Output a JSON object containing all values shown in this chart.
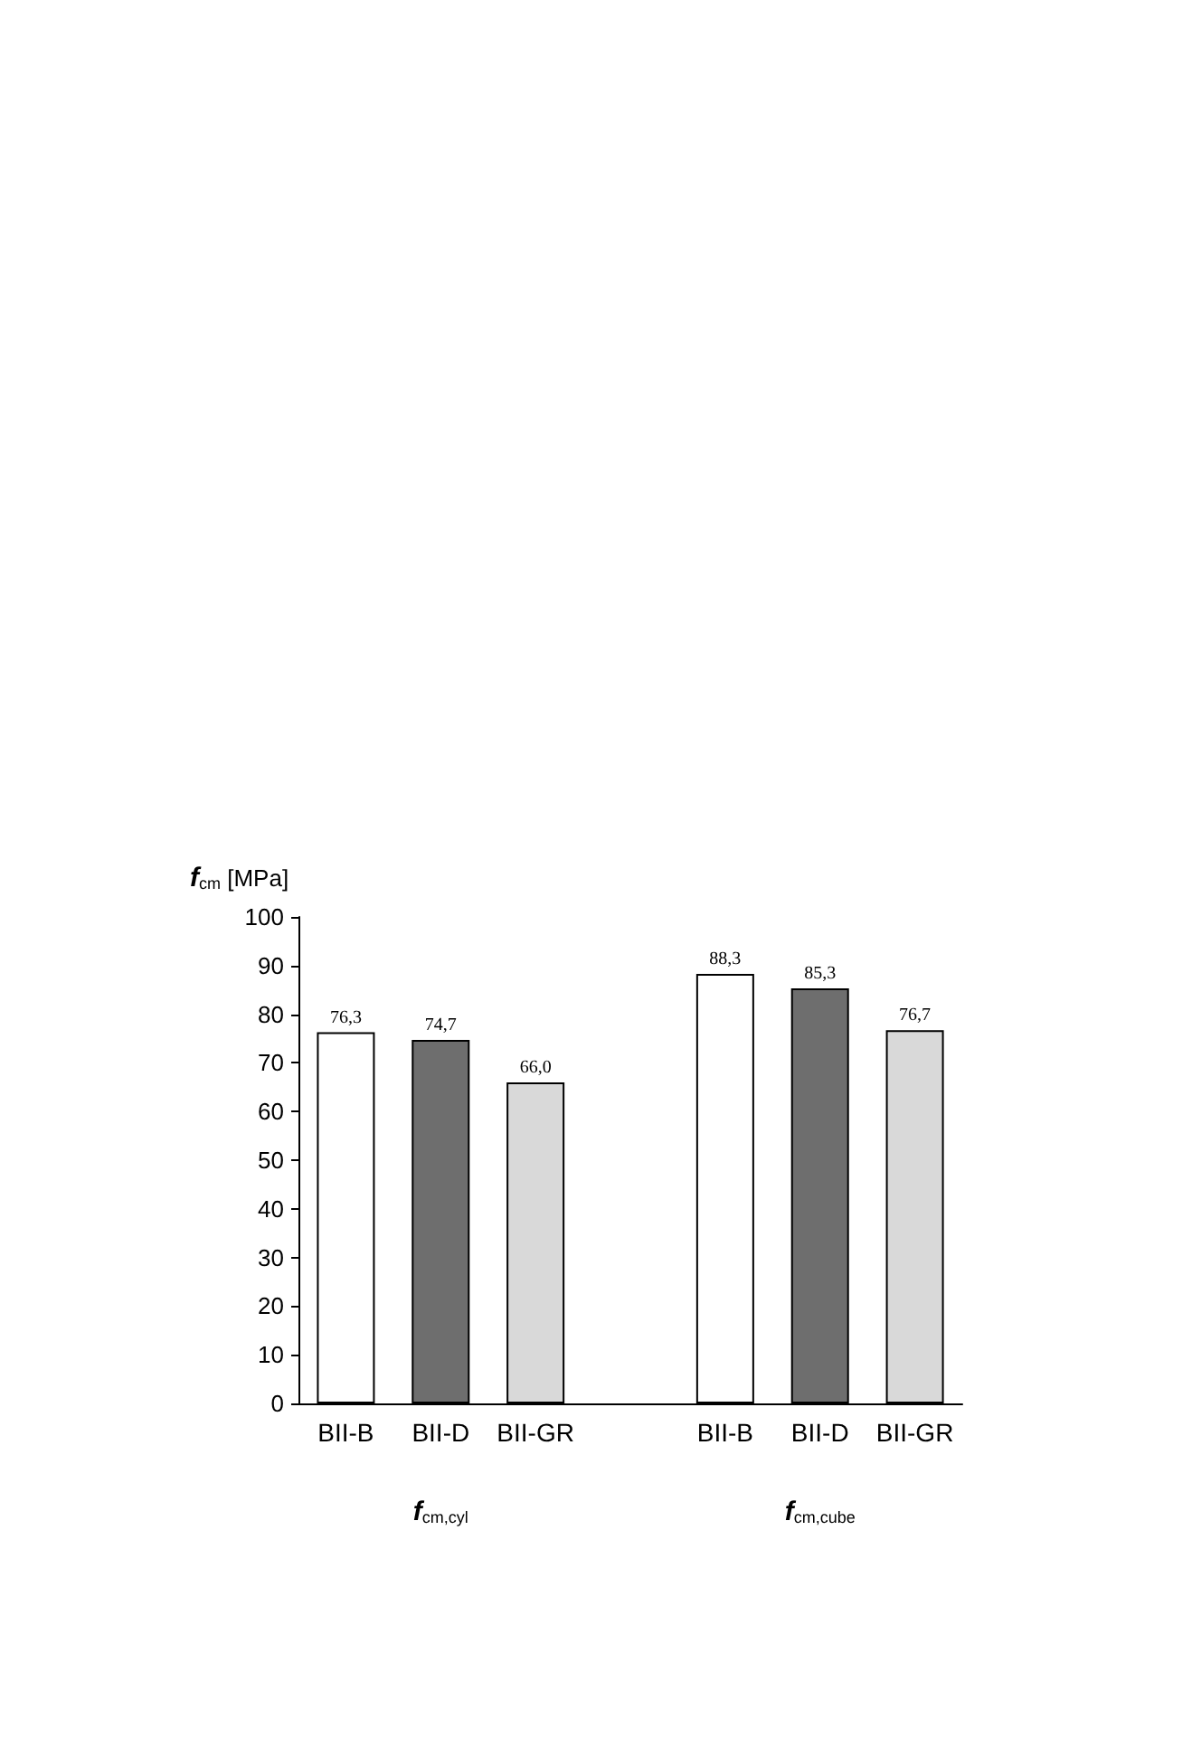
{
  "chart_data": {
    "type": "bar",
    "ylabel": "f$_{cm}$ [MPa]",
    "categories": [
      "BII-B",
      "BII-D",
      "BII-GR",
      null,
      "BII-B",
      "BII-D",
      "BII-GR"
    ],
    "values": [
      76.3,
      74.7,
      66.0,
      null,
      88.3,
      85.3,
      76.7
    ],
    "colors": [
      "#ffffff",
      "#6e6e6e",
      "#d9d9d9",
      null,
      "#ffffff",
      "#6e6e6e",
      "#d9d9d9"
    ],
    "value_labels": [
      "76,3",
      "74,7",
      "66,0",
      null,
      "88,3",
      "85,3",
      "76,7"
    ],
    "ylim": [
      0,
      100
    ],
    "yticks": [
      0,
      10,
      20,
      30,
      40,
      50,
      60,
      70,
      80,
      90,
      100
    ],
    "annotations": [
      "f$_{cm,cyl}$",
      "f$_{cm,cube}$"
    ],
    "grid": false
  }
}
